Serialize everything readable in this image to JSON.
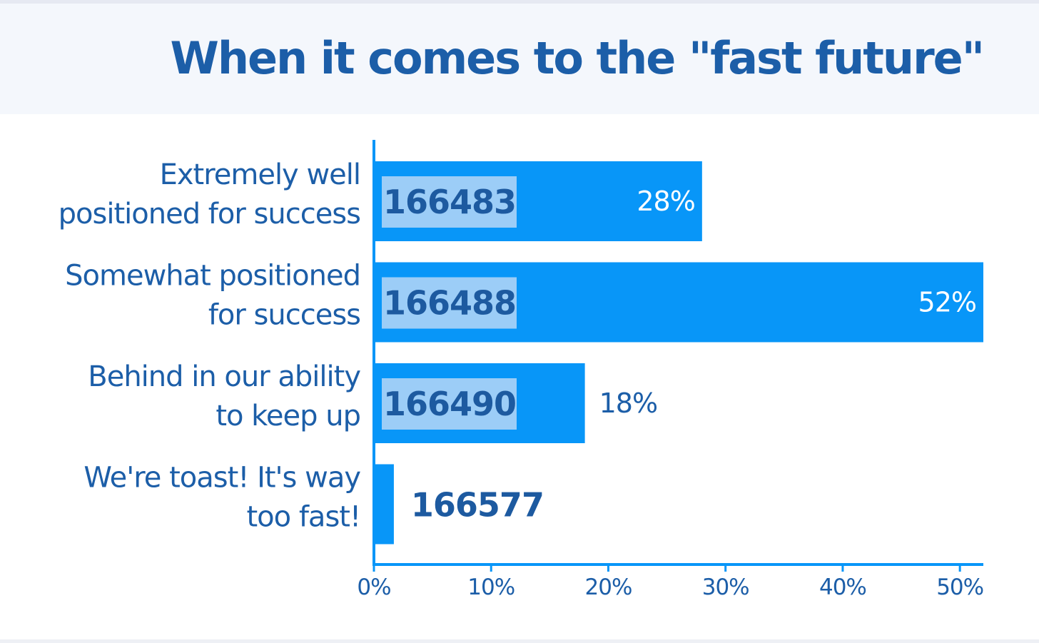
{
  "title": "When it comes to the \"fast future\"",
  "colors": {
    "bar": "#0896f8",
    "axis": "#0896f8",
    "text": "#1c5ea8",
    "id_box": "#9ccdf7",
    "pct_inside": "#ffffff",
    "pct_outside": "#1c5ea8"
  },
  "chart_data": {
    "type": "bar",
    "orientation": "horizontal",
    "categories": [
      [
        "Extremely well",
        "positioned for success"
      ],
      [
        "Somewhat positioned",
        "for success"
      ],
      [
        "Behind in our ability",
        "to keep up"
      ],
      [
        "We're toast! It's way",
        "too fast!"
      ]
    ],
    "values": [
      28,
      52,
      18,
      1.7
    ],
    "value_labels": [
      "28%",
      "52%",
      "18%",
      ""
    ],
    "bar_ids": [
      "166483",
      "166488",
      "166490",
      "166577"
    ],
    "x_ticks": [
      0,
      10,
      20,
      30,
      40,
      50
    ],
    "x_tick_labels": [
      "0%",
      "10%",
      "20%",
      "30%",
      "40%",
      "50%"
    ],
    "xlim": [
      0,
      52
    ],
    "grid": false,
    "legend": "none"
  }
}
